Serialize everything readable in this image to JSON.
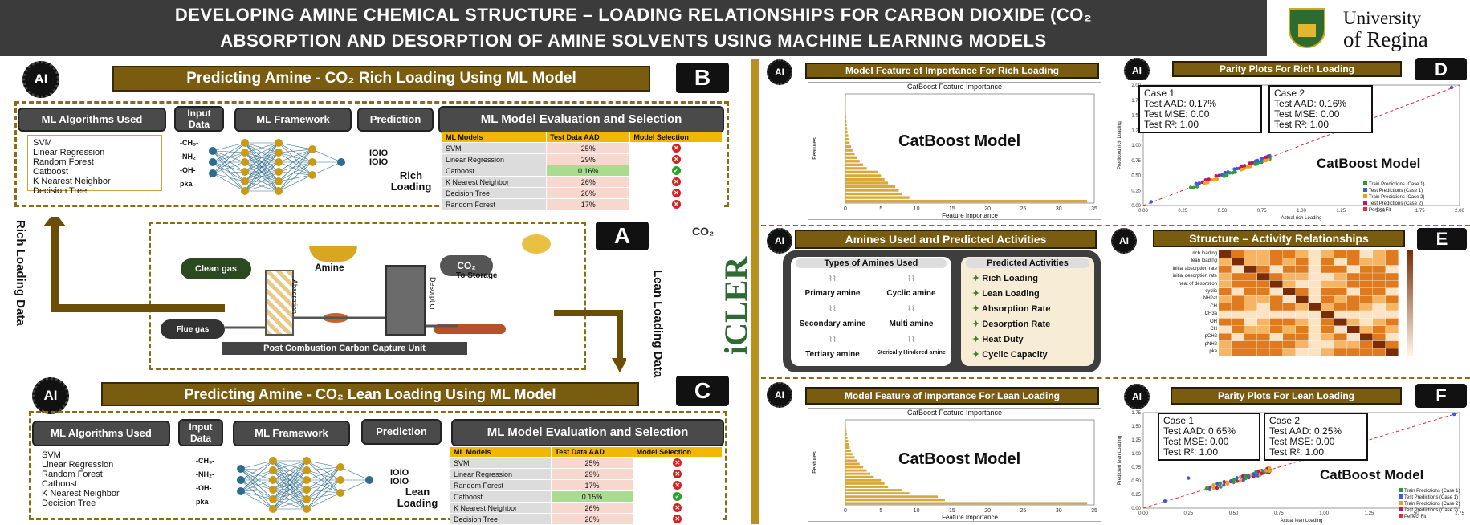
{
  "header": {
    "line1": "DEVELOPING AMINE CHEMICAL STRUCTURE – LOADING RELATIONSHIPS FOR CARBON DIOXIDE (CO₂",
    "line2": "ABSORPTION AND DESORPTION OF AMINE SOLVENTS USING MACHINE LEARNING MODELS",
    "logo_line1": "University",
    "logo_line2": "of Regina"
  },
  "ai_label": "AI",
  "panelB": {
    "letter": "B",
    "title": "Predicting Amine -  CO₂ Rich Loading Using ML Model",
    "pill_algs": "ML Algorithms Used",
    "pill_input": "Input Data",
    "pill_framework": "ML Framework",
    "pill_prediction": "Prediction",
    "pill_eval": "ML Model Evaluation and Selection",
    "algorithms": [
      "SVM",
      "Linear Regression",
      "Random Forest",
      "Catboost",
      "K Nearest Neighbor",
      "Decision Tree"
    ],
    "inputs": [
      "-CH₃-",
      "-NH₂-",
      "-OH-",
      "pka"
    ],
    "binary": "IOIO\nIOIO",
    "output": "Rich Loading",
    "table_headers": [
      "ML Models",
      "Test Data AAD",
      "Model Selection"
    ],
    "rows": [
      {
        "model": "SVM",
        "aad": "25%",
        "sel": "x"
      },
      {
        "model": "Linear Regression",
        "aad": "29%",
        "sel": "x"
      },
      {
        "model": "Catboost",
        "aad": "0.16%",
        "sel": "ok"
      },
      {
        "model": "K Nearest Neighbor",
        "aad": "26%",
        "sel": "x"
      },
      {
        "model": "Decision Tree",
        "aad": "26%",
        "sel": "x"
      },
      {
        "model": "Random Forest",
        "aad": "17%",
        "sel": "x"
      }
    ]
  },
  "panelA": {
    "letter": "A",
    "clean_gas": "Clean gas",
    "flue_gas": "Flue gas",
    "amine": "Amine",
    "co2": "CO₂",
    "to_storage": "To Storage",
    "absorption": "Absorption",
    "desorption": "Desorption",
    "unit_label": "Post Combustion Carbon Capture Unit",
    "rich_loading_data": "Rich Loading Data",
    "lean_loading_data": "Lean Loading Data",
    "brand": "iCLER",
    "brand_sub": "CO₂"
  },
  "panelC": {
    "letter": "C",
    "title": "Predicting Amine - CO₂ Lean Loading Using ML Model",
    "pill_algs": "ML Algorithms Used",
    "pill_input": "Input Data",
    "pill_framework": "ML Framework",
    "pill_prediction": "Prediction",
    "pill_eval": "ML Model Evaluation and Selection",
    "algorithms": [
      "SVM",
      "Linear Regression",
      "Random Forest",
      "Catboost",
      "K Nearest Neighbor",
      "Decision Tree"
    ],
    "inputs": [
      "-CH₃-",
      "-NH₂-",
      "-OH-",
      "pka"
    ],
    "output": "Lean Loading",
    "table_headers": [
      "ML Models",
      "Test Data AAD",
      "Model Selection"
    ],
    "rows": [
      {
        "model": "SVM",
        "aad": "25%",
        "sel": "x"
      },
      {
        "model": "Linear Regression",
        "aad": "29%",
        "sel": "x"
      },
      {
        "model": "Random Forest",
        "aad": "17%",
        "sel": "x"
      },
      {
        "model": "Catboost",
        "aad": "0.15%",
        "sel": "ok"
      },
      {
        "model": "K Nearest Neighbor",
        "aad": "26%",
        "sel": "x"
      },
      {
        "model": "Decision Tree",
        "aad": "26%",
        "sel": "x"
      }
    ]
  },
  "rich_importance": {
    "heading": "Model Feature of Importance For Rich Loading",
    "chart_title": "CatBoost Feature Importance",
    "overlay": "CatBoost Model",
    "xlabel": "Feature Importance",
    "ylabel": "Features"
  },
  "rich_parity": {
    "heading": "Parity  Plots For Rich Loading",
    "letter": "D",
    "case1": [
      "Case 1",
      "Test AAD: 0.17%",
      "Test MSE: 0.00",
      "Test R²: 1.00"
    ],
    "case2": [
      "Case 2",
      "Test AAD: 0.16%",
      "Test MSE: 0.00",
      "Test R²: 1.00"
    ],
    "overlay": "CatBoost Model",
    "xlabel": "Actual rich Loading",
    "ylabel": "Predicted rich Loading",
    "legend": [
      "Train Predictions (Case 1)",
      "Test Predictions (Case 1)",
      "Train Predictions (Case 2)",
      "Test Predictions (Case 2)",
      "Perfect Fit"
    ]
  },
  "amines": {
    "heading": "Amines Used and Predicted Activities",
    "types_title": "Types of Amines Used",
    "types": [
      "Primary amine",
      "Cyclic amine",
      "Secondary amine",
      "Multi amine",
      "Tertiary amine",
      "Sterically Hindered amine"
    ],
    "activities_title": "Predicted Activities",
    "activities": [
      "Rich Loading",
      "Lean Loading",
      "Absorption Rate",
      "Desorption Rate",
      "Heat Duty",
      "Cyclic Capacity"
    ]
  },
  "sar": {
    "heading": "Structure – Activity Relationships",
    "letter": "E",
    "rows": [
      "rich loading",
      "lean loading",
      "initial absorption rate",
      "initial desorption rate",
      "heat of desorption",
      "cyclic",
      "NH2at",
      "CH",
      "CH3a",
      "OH",
      "CH",
      "pCH2",
      "pNH2",
      "pka"
    ]
  },
  "lean_importance": {
    "heading": "Model Feature of Importance For Lean Loading",
    "chart_title": "CatBoost Feature Importance",
    "overlay": "CatBoost Model",
    "xlabel": "Feature Importance",
    "ylabel": "Features"
  },
  "lean_parity": {
    "heading": "Parity  Plots For Lean  Loading",
    "letter": "F",
    "case1": [
      "Case 1",
      "Test AAD: 0.65%",
      "Test MSE: 0.00",
      "Test R²: 1.00"
    ],
    "case2": [
      "Case 2",
      "Test AAD: 0.25%",
      "Test MSE: 0.00",
      "Test R²: 1.00"
    ],
    "overlay": "CatBoost Model",
    "xlabel": "Actual lean Loading",
    "ylabel": "Predicted lean Loading",
    "legend": [
      "Train Predictions (Case 1)",
      "Test Predictions (Case 1)",
      "Train Predictions (Case 2)",
      "Test Predictions (Case 2)",
      "Perfect Fit"
    ]
  },
  "chart_data": [
    {
      "type": "bar",
      "orientation": "horizontal",
      "title": "CatBoost Feature Importance",
      "xlabel": "Feature Importance",
      "ylabel": "Features",
      "xlim": [
        0,
        35
      ],
      "x_ticks": [
        "0",
        "5",
        "10",
        "15",
        "20",
        "25",
        "30",
        "35"
      ],
      "values": [
        34,
        9,
        8,
        7.5,
        7,
        6,
        5.5,
        5,
        4.5,
        3,
        2.5,
        2,
        1.6,
        1.3,
        1,
        0.8,
        0.6,
        0.5,
        0.4,
        0.3,
        0.25,
        0.2,
        0.15,
        0.1,
        0.08,
        0.06,
        0.05,
        0.04,
        0.03,
        0.02
      ]
    },
    {
      "type": "scatter",
      "title": "",
      "xlabel": "Actual rich Loading",
      "ylabel": "Predicted rich Loading",
      "xlim": [
        0,
        2.0
      ],
      "ylim": [
        0,
        2.0
      ],
      "x_ticks": [
        "0.00",
        "0.25",
        "0.50",
        "0.75",
        "1.00",
        "1.25",
        "1.50",
        "1.75",
        "2.00"
      ],
      "y_ticks": [
        "0.00",
        "0.25",
        "0.50",
        "0.75",
        "1.00",
        "1.25",
        "1.50",
        "1.75",
        "2.00"
      ]
    },
    {
      "type": "bar",
      "orientation": "horizontal",
      "title": "CatBoost Feature Importance",
      "xlabel": "Feature Importance",
      "ylabel": "Features",
      "xlim": [
        0,
        35
      ],
      "x_ticks": [
        "0",
        "5",
        "10",
        "15",
        "20",
        "25",
        "30",
        "35"
      ],
      "values": [
        34,
        14,
        13,
        9,
        8,
        6,
        5.5,
        5,
        4,
        3.5,
        3,
        2.5,
        2,
        1.6,
        1.3,
        1,
        0.8,
        0.6,
        0.5,
        0.4,
        0.3,
        0.2,
        0.15,
        0.1,
        0.08,
        0.05
      ]
    },
    {
      "type": "scatter",
      "title": "",
      "xlabel": "Actual lean Loading",
      "ylabel": "Predicted lean Loading",
      "xlim": [
        0,
        1.75
      ],
      "ylim": [
        0,
        1.75
      ],
      "x_ticks": [
        "0.00",
        "0.25",
        "0.50",
        "0.75",
        "1.00",
        "1.25",
        "1.50",
        "1.75"
      ],
      "y_ticks": [
        "0.00",
        "0.25",
        "0.50",
        "0.75",
        "1.00",
        "1.25",
        "1.50",
        "1.75"
      ]
    }
  ]
}
